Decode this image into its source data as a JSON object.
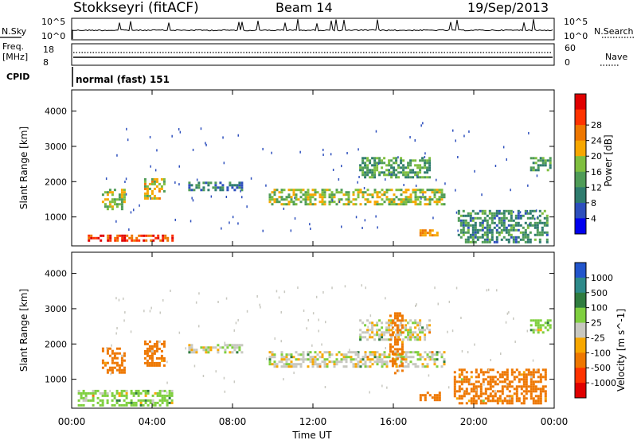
{
  "header": {
    "station": "Stokkseyri (fitACF)",
    "beam": "Beam 14",
    "date": "19/Sep/2013"
  },
  "noise_panel": {
    "left_label": "N.Sky",
    "right_label": "N.Search",
    "tick_top": "10^5",
    "tick_bottom": "10^0"
  },
  "freq_panel": {
    "left_label_1": "Freq.",
    "left_label_2": "[MHz]",
    "right_label": "Nave",
    "left_ticks": [
      "18",
      "8"
    ],
    "right_ticks": [
      "60",
      "0"
    ]
  },
  "cpid_panel": {
    "label": "CPID",
    "value": "normal (fast) 151"
  },
  "chart_data": [
    {
      "type": "heatmap",
      "title": "",
      "xlabel": "",
      "ylabel": "Slant Range [km]",
      "xlim": [
        "00:00",
        "24:00"
      ],
      "ylim": [
        180,
        4600
      ],
      "y_ticks": [
        "1000",
        "2000",
        "3000",
        "4000"
      ],
      "colorbar": {
        "label": "Power [dB]",
        "ticks": [
          "4",
          "8",
          "12",
          "16",
          "20",
          "24",
          "28"
        ],
        "colors": [
          "#0000ee",
          "#2d4fbd",
          "#2f7c6e",
          "#4f9c57",
          "#7fbf3f",
          "#f7a700",
          "#ee7700",
          "#ff3300",
          "#e00000"
        ]
      },
      "regions": [
        {
          "t0": 0.8,
          "t1": 5.0,
          "r0": 300,
          "r1": 500,
          "value": 26
        },
        {
          "t0": 1.5,
          "t1": 2.6,
          "r0": 1200,
          "r1": 1800,
          "value": 14
        },
        {
          "t0": 3.6,
          "t1": 4.6,
          "r0": 1500,
          "r1": 2100,
          "value": 16
        },
        {
          "t0": 5.8,
          "t1": 8.5,
          "r0": 1750,
          "r1": 2000,
          "value": 6
        },
        {
          "t0": 9.8,
          "t1": 18.5,
          "r0": 1350,
          "r1": 1800,
          "value": 14
        },
        {
          "t0": 14.3,
          "t1": 17.8,
          "r0": 2100,
          "r1": 2700,
          "value": 10
        },
        {
          "t0": 17.3,
          "t1": 18.2,
          "r0": 450,
          "r1": 650,
          "value": 20
        },
        {
          "t0": 19.2,
          "t1": 23.6,
          "r0": 300,
          "r1": 1200,
          "value": 8
        },
        {
          "t0": 22.8,
          "t1": 23.8,
          "r0": 2300,
          "r1": 2700,
          "value": 10
        }
      ]
    },
    {
      "type": "heatmap",
      "title": "",
      "xlabel": "Time UT",
      "ylabel": "Slant Range [km]",
      "xlim": [
        "00:00",
        "24:00"
      ],
      "ylim": [
        180,
        4600
      ],
      "x_ticks": [
        "00:00",
        "04:00",
        "08:00",
        "12:00",
        "16:00",
        "20:00",
        "00:00"
      ],
      "y_ticks": [
        "1000",
        "2000",
        "3000",
        "4000"
      ],
      "colorbar": {
        "label": "Velocity [m s^-1]",
        "ticks": [
          "1000",
          "500",
          "100",
          "25",
          "-25",
          "-100",
          "-500",
          "-1000"
        ],
        "colors": [
          "#2255cc",
          "#2e8a8a",
          "#2f7c3f",
          "#7fcf3f",
          "#c8c8c0",
          "#f7a700",
          "#ee7700",
          "#ff3300",
          "#e00000"
        ]
      },
      "regions": [
        {
          "t0": 0.3,
          "t1": 5.0,
          "r0": 250,
          "r1": 700,
          "value": 60
        },
        {
          "t0": 1.5,
          "t1": 2.6,
          "r0": 1200,
          "r1": 1900,
          "value": -150
        },
        {
          "t0": 3.6,
          "t1": 4.6,
          "r0": 1400,
          "r1": 2100,
          "value": -150
        },
        {
          "t0": 5.8,
          "t1": 8.5,
          "r0": 1750,
          "r1": 2000,
          "value": 0
        },
        {
          "t0": 9.8,
          "t1": 18.5,
          "r0": 1350,
          "r1": 1800,
          "value": 0
        },
        {
          "t0": 14.3,
          "t1": 17.8,
          "r0": 2100,
          "r1": 2700,
          "value": 0
        },
        {
          "t0": 15.8,
          "t1": 16.4,
          "r0": 1200,
          "r1": 2900,
          "value": -200
        },
        {
          "t0": 17.3,
          "t1": 18.3,
          "r0": 400,
          "r1": 650,
          "value": -300
        },
        {
          "t0": 19.0,
          "t1": 23.6,
          "r0": 300,
          "r1": 1300,
          "value": -150
        },
        {
          "t0": 22.8,
          "t1": 23.8,
          "r0": 2300,
          "r1": 2700,
          "value": 60
        }
      ]
    }
  ]
}
